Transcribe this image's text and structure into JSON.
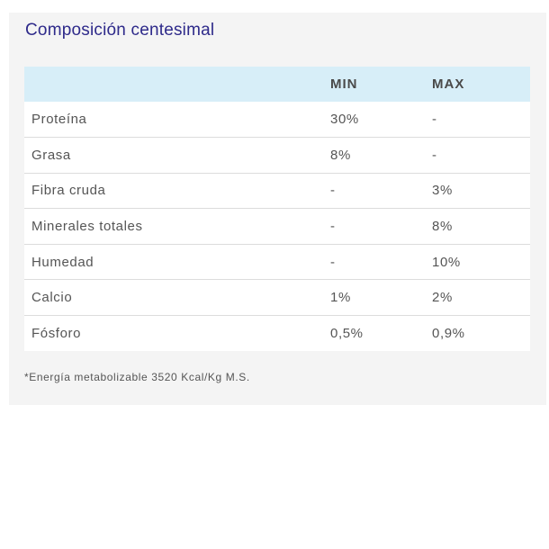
{
  "section": {
    "title": "Composición centesimal"
  },
  "table": {
    "headers": [
      "",
      "MIN",
      "MAX"
    ],
    "rows": [
      {
        "nutrient": "Proteína",
        "min": "30%",
        "max": "-"
      },
      {
        "nutrient": "Grasa",
        "min": "8%",
        "max": "-"
      },
      {
        "nutrient": "Fibra cruda",
        "min": "-",
        "max": "3%"
      },
      {
        "nutrient": "Minerales totales",
        "min": "-",
        "max": "8%"
      },
      {
        "nutrient": "Humedad",
        "min": "-",
        "max": "10%"
      },
      {
        "nutrient": "Calcio",
        "min": "1%",
        "max": "2%"
      },
      {
        "nutrient": "Fósforo",
        "min": "0,5%",
        "max": "0,9%"
      }
    ]
  },
  "footnote": "*Energía metabolizable 3520 Kcal/Kg M.S.",
  "colors": {
    "title": "#2e2a8a",
    "header_background": "#d7eef8",
    "card_background": "#f4f4f4"
  }
}
